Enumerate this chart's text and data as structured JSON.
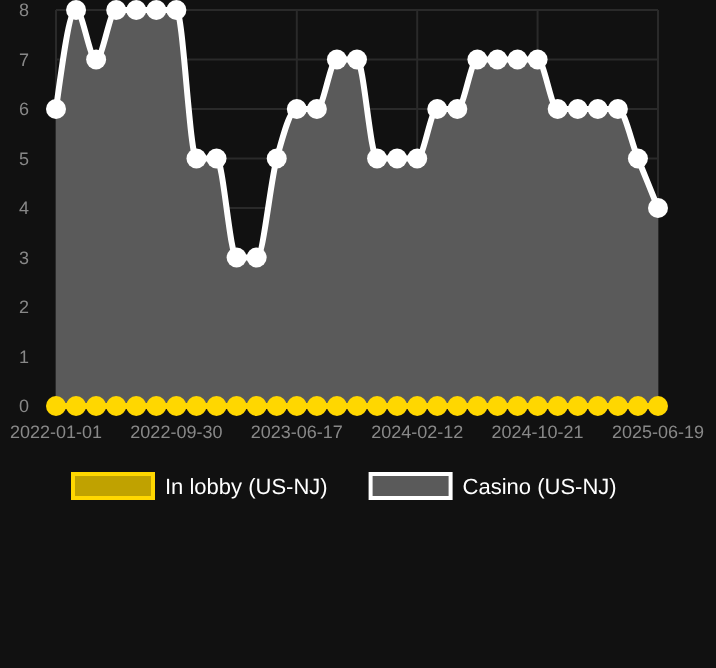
{
  "chart_data": {
    "type": "line",
    "categories": [
      "2022-01-01",
      null,
      null,
      null,
      null,
      null,
      "2022-09-30",
      null,
      null,
      null,
      null,
      null,
      "2023-06-17",
      null,
      null,
      null,
      null,
      null,
      "2024-02-12",
      null,
      null,
      null,
      null,
      null,
      "2024-10-21",
      null,
      null,
      null,
      null,
      null,
      "2025-06-19"
    ],
    "series": [
      {
        "name": "In lobby (US-NJ)",
        "color": "#ffd700",
        "values": [
          0,
          0,
          0,
          0,
          0,
          0,
          0,
          0,
          0,
          0,
          0,
          0,
          0,
          0,
          0,
          0,
          0,
          0,
          0,
          0,
          0,
          0,
          0,
          0,
          0,
          0,
          0,
          0,
          0,
          0,
          0
        ]
      },
      {
        "name": "Casino (US-NJ)",
        "type": "area",
        "color": "#ffffff",
        "values": [
          6,
          8,
          7,
          8,
          8,
          8,
          8,
          5,
          5,
          3,
          3,
          5,
          6,
          6,
          7,
          7,
          5,
          5,
          5,
          6,
          6,
          7,
          7,
          7,
          7,
          6,
          6,
          6,
          6,
          5,
          4
        ]
      }
    ],
    "ylim": [
      0,
      8
    ],
    "yticks": [
      0,
      1,
      2,
      3,
      4,
      5,
      6,
      7,
      8
    ],
    "grid": true,
    "legend": "bottom",
    "marker": "circle"
  }
}
